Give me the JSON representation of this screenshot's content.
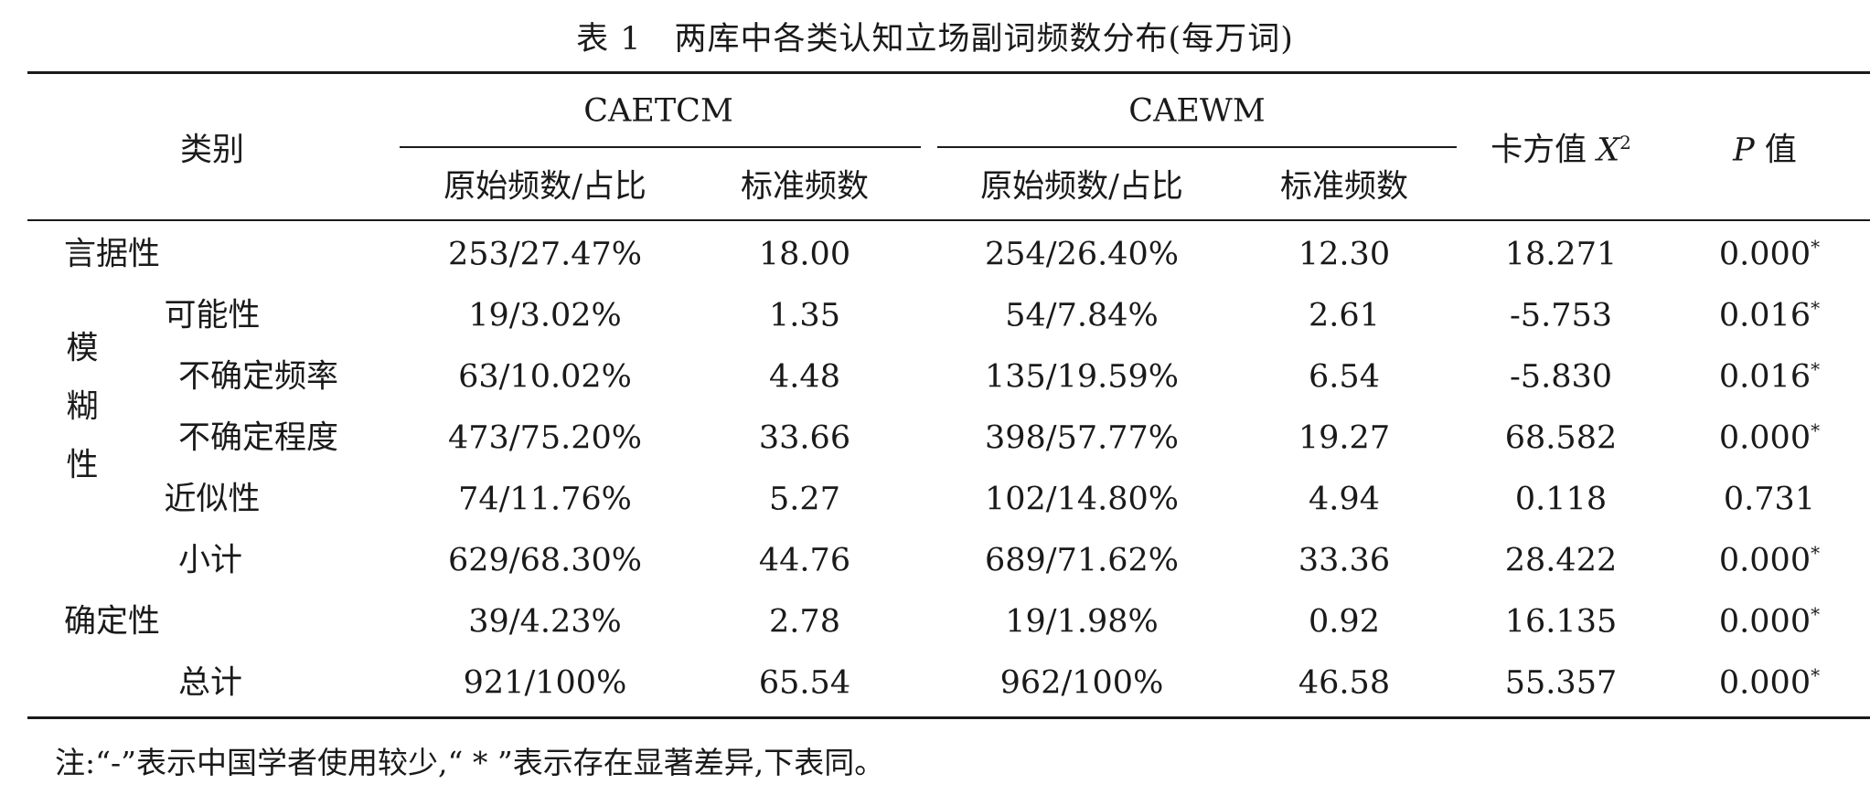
{
  "caption": "表 1　两库中各类认知立场副词频数分布(每万词)",
  "header": {
    "category": "类别",
    "group1": "CAETCM",
    "group2": "CAEWM",
    "raw_share": "原始频数/占比",
    "std_freq": "标准频数",
    "chi_label": "卡方值 ",
    "chi_symbol": "X",
    "chi_sup": "2",
    "p_symbol": "P",
    "p_label": " 值"
  },
  "vague_group_chars": [
    "模",
    "糊",
    "性"
  ],
  "rows": [
    {
      "label": "言据性",
      "c_raw": "253/27.47%",
      "c_std": "18.00",
      "w_raw": "254/26.40%",
      "w_std": "12.30",
      "chi": "18.271",
      "p": "0.000",
      "mark": "*"
    },
    {
      "label": "可能性",
      "c_raw": "19/3.02%",
      "c_std": "1.35",
      "w_raw": "54/7.84%",
      "w_std": "2.61",
      "chi": "-5.753",
      "p": "0.016",
      "mark": "*"
    },
    {
      "label": "不确定频率",
      "c_raw": "63/10.02%",
      "c_std": "4.48",
      "w_raw": "135/19.59%",
      "w_std": "6.54",
      "chi": "-5.830",
      "p": "0.016",
      "mark": "*"
    },
    {
      "label": "不确定程度",
      "c_raw": "473/75.20%",
      "c_std": "33.66",
      "w_raw": "398/57.77%",
      "w_std": "19.27",
      "chi": "68.582",
      "p": "0.000",
      "mark": "*"
    },
    {
      "label": "近似性",
      "c_raw": "74/11.76%",
      "c_std": "5.27",
      "w_raw": "102/14.80%",
      "w_std": "4.94",
      "chi": "0.118",
      "p": "0.731",
      "mark": ""
    },
    {
      "label": "小计",
      "c_raw": "629/68.30%",
      "c_std": "44.76",
      "w_raw": "689/71.62%",
      "w_std": "33.36",
      "chi": "28.422",
      "p": "0.000",
      "mark": "*"
    },
    {
      "label": "确定性",
      "c_raw": "39/4.23%",
      "c_std": "2.78",
      "w_raw": "19/1.98%",
      "w_std": "0.92",
      "chi": "16.135",
      "p": "0.000",
      "mark": "*"
    },
    {
      "label": "总计",
      "c_raw": "921/100%",
      "c_std": "65.54",
      "w_raw": "962/100%",
      "w_std": "46.58",
      "chi": "55.357",
      "p": "0.000",
      "mark": "*"
    }
  ],
  "note": "注:“-”表示中国学者使用较少,“ * ”表示存在显著差异,下表同。"
}
